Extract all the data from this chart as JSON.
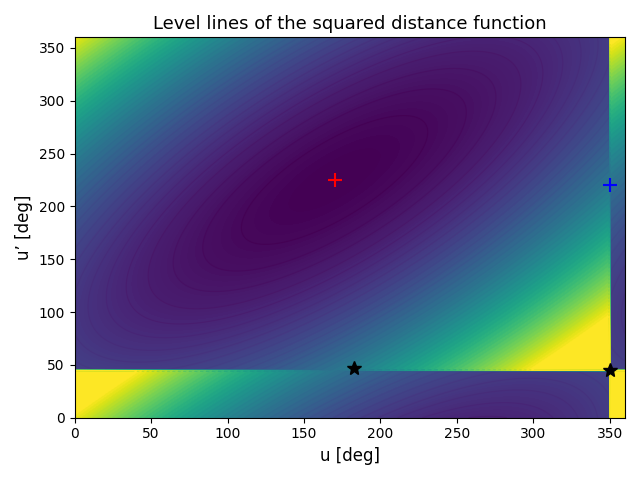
{
  "title": "Level lines of the squared distance function",
  "xlabel": "u [deg]",
  "ylabel": "u’ [deg]",
  "xlim": [
    0,
    360
  ],
  "ylim": [
    0,
    360
  ],
  "xticks": [
    0,
    50,
    100,
    150,
    200,
    250,
    300,
    350
  ],
  "yticks": [
    0,
    50,
    100,
    150,
    200,
    250,
    300,
    350
  ],
  "red_plus": [
    170,
    225
  ],
  "blue_plus": [
    350,
    220
  ],
  "black_star1": [
    183,
    47
  ],
  "black_star2": [
    350,
    45
  ],
  "colormap": "viridis",
  "n_contours": 50,
  "figsize": [
    6.4,
    4.8
  ],
  "dpi": 100,
  "title_fontsize": 13,
  "label_fontsize": 12
}
